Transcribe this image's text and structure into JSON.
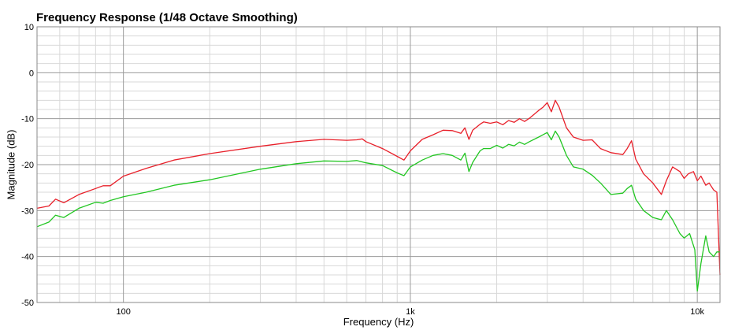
{
  "chart_data": {
    "type": "line",
    "title": "Frequency Response (1/48 Octave Smoothing)",
    "xlabel": "Frequency (Hz)",
    "ylabel": "Magnitude (dB)",
    "x_scale": "log",
    "xlim": [
      50,
      12000
    ],
    "ylim": [
      -50,
      10
    ],
    "x_ticks": [
      {
        "value": 100,
        "label": "100"
      },
      {
        "value": 1000,
        "label": "1k"
      },
      {
        "value": 10000,
        "label": "10k"
      }
    ],
    "y_ticks": [
      10,
      0,
      -10,
      -20,
      -30,
      -40,
      -50
    ],
    "grid": true,
    "colors": {
      "red": "#e8202a",
      "green": "#22c622",
      "major_grid": "#9a9a9a",
      "minor_grid": "#d8d8d8"
    },
    "series": [
      {
        "color": "#e8202a",
        "points": [
          [
            50,
            -29.5
          ],
          [
            55,
            -29
          ],
          [
            58,
            -27.5
          ],
          [
            62,
            -28.3
          ],
          [
            70,
            -26.5
          ],
          [
            80,
            -25.2
          ],
          [
            85,
            -24.6
          ],
          [
            90,
            -24.6
          ],
          [
            100,
            -22.5
          ],
          [
            120,
            -20.8
          ],
          [
            150,
            -19
          ],
          [
            200,
            -17.6
          ],
          [
            300,
            -16
          ],
          [
            400,
            -15
          ],
          [
            500,
            -14.5
          ],
          [
            600,
            -14.7
          ],
          [
            650,
            -14.6
          ],
          [
            680,
            -14.4
          ],
          [
            700,
            -15
          ],
          [
            800,
            -16.5
          ],
          [
            900,
            -18.2
          ],
          [
            950,
            -19
          ],
          [
            1000,
            -17
          ],
          [
            1100,
            -14.5
          ],
          [
            1200,
            -13.5
          ],
          [
            1300,
            -12.5
          ],
          [
            1400,
            -12.6
          ],
          [
            1500,
            -13.2
          ],
          [
            1550,
            -12
          ],
          [
            1600,
            -14.5
          ],
          [
            1650,
            -12.5
          ],
          [
            1750,
            -11.2
          ],
          [
            1800,
            -10.7
          ],
          [
            1900,
            -11
          ],
          [
            2000,
            -10.7
          ],
          [
            2100,
            -11.3
          ],
          [
            2200,
            -10.4
          ],
          [
            2300,
            -10.8
          ],
          [
            2400,
            -10
          ],
          [
            2500,
            -10.6
          ],
          [
            2600,
            -9.9
          ],
          [
            2800,
            -8.2
          ],
          [
            2900,
            -7.5
          ],
          [
            3000,
            -6.5
          ],
          [
            3100,
            -8.5
          ],
          [
            3200,
            -6
          ],
          [
            3300,
            -7.5
          ],
          [
            3500,
            -12
          ],
          [
            3700,
            -14
          ],
          [
            4000,
            -14.7
          ],
          [
            4300,
            -14.6
          ],
          [
            4600,
            -16.5
          ],
          [
            5000,
            -17.4
          ],
          [
            5500,
            -17.8
          ],
          [
            5700,
            -16.5
          ],
          [
            5900,
            -14.8
          ],
          [
            6100,
            -18.8
          ],
          [
            6500,
            -22
          ],
          [
            7000,
            -24
          ],
          [
            7500,
            -26.5
          ],
          [
            7800,
            -23.5
          ],
          [
            8200,
            -20.5
          ],
          [
            8700,
            -21.5
          ],
          [
            9000,
            -23
          ],
          [
            9300,
            -22
          ],
          [
            9700,
            -21.5
          ],
          [
            10000,
            -23.5
          ],
          [
            10300,
            -22.5
          ],
          [
            10700,
            -24.5
          ],
          [
            11000,
            -24
          ],
          [
            11400,
            -25.5
          ],
          [
            11700,
            -26
          ],
          [
            12000,
            -44
          ]
        ]
      },
      {
        "color": "#22c622",
        "points": [
          [
            50,
            -33.5
          ],
          [
            55,
            -32.5
          ],
          [
            58,
            -31
          ],
          [
            62,
            -31.5
          ],
          [
            70,
            -29.5
          ],
          [
            80,
            -28.2
          ],
          [
            85,
            -28.4
          ],
          [
            90,
            -27.8
          ],
          [
            100,
            -27
          ],
          [
            120,
            -26
          ],
          [
            150,
            -24.5
          ],
          [
            200,
            -23.3
          ],
          [
            300,
            -21
          ],
          [
            400,
            -19.8
          ],
          [
            500,
            -19.2
          ],
          [
            600,
            -19.3
          ],
          [
            650,
            -19.1
          ],
          [
            700,
            -19.6
          ],
          [
            800,
            -20.2
          ],
          [
            900,
            -21.8
          ],
          [
            950,
            -22.4
          ],
          [
            1000,
            -20.5
          ],
          [
            1100,
            -19
          ],
          [
            1200,
            -18
          ],
          [
            1300,
            -17.6
          ],
          [
            1400,
            -18
          ],
          [
            1500,
            -19
          ],
          [
            1550,
            -17.5
          ],
          [
            1600,
            -21.5
          ],
          [
            1650,
            -19.5
          ],
          [
            1750,
            -17
          ],
          [
            1800,
            -16.5
          ],
          [
            1900,
            -16.5
          ],
          [
            2000,
            -15.8
          ],
          [
            2100,
            -16.4
          ],
          [
            2200,
            -15.6
          ],
          [
            2300,
            -15.9
          ],
          [
            2400,
            -15.1
          ],
          [
            2500,
            -15.6
          ],
          [
            2600,
            -15
          ],
          [
            2800,
            -14
          ],
          [
            2900,
            -13.5
          ],
          [
            3000,
            -13
          ],
          [
            3100,
            -14.6
          ],
          [
            3200,
            -12.7
          ],
          [
            3300,
            -14
          ],
          [
            3500,
            -18
          ],
          [
            3700,
            -20.5
          ],
          [
            4000,
            -21
          ],
          [
            4300,
            -22.3
          ],
          [
            4600,
            -24
          ],
          [
            5000,
            -26.5
          ],
          [
            5500,
            -26.2
          ],
          [
            5700,
            -25.2
          ],
          [
            5900,
            -24.5
          ],
          [
            6100,
            -27.5
          ],
          [
            6500,
            -30
          ],
          [
            7000,
            -31.5
          ],
          [
            7500,
            -32
          ],
          [
            7800,
            -30
          ],
          [
            8200,
            -32
          ],
          [
            8700,
            -35
          ],
          [
            9000,
            -36
          ],
          [
            9400,
            -35
          ],
          [
            9800,
            -38.5
          ],
          [
            10000,
            -47.5
          ],
          [
            10300,
            -41.5
          ],
          [
            10700,
            -35.5
          ],
          [
            11000,
            -39
          ],
          [
            11400,
            -40
          ],
          [
            11700,
            -39
          ],
          [
            12000,
            -39
          ]
        ]
      }
    ]
  }
}
